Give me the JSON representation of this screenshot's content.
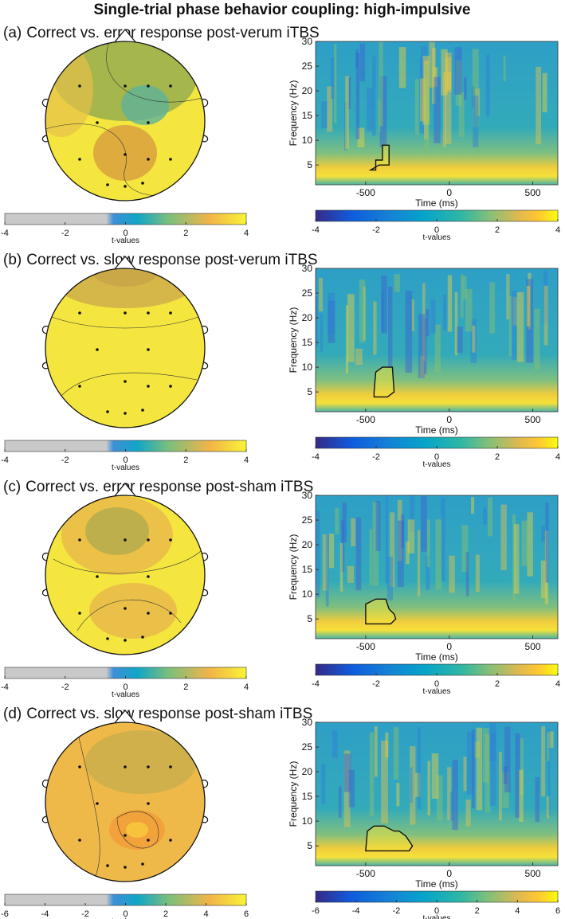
{
  "title": "Single-trial phase behavior coupling: high-impulsive",
  "chart_data": [
    {
      "type": "topoplot",
      "panel": "(a)",
      "title": "Correct vs. error response post-verum iTBS",
      "clim": [
        -4,
        4
      ],
      "cticks": [
        -4,
        -2,
        0,
        2,
        4
      ],
      "clabel": "t-values"
    },
    {
      "type": "heatmap",
      "xlabel": "Time (ms)",
      "ylabel": "Frequency (Hz)",
      "xlim": [
        -800,
        650
      ],
      "xticks": [
        -500,
        0,
        500
      ],
      "ylim": [
        1,
        30
      ],
      "yticks": [
        5,
        10,
        15,
        20,
        25,
        30
      ],
      "clim": [
        -4,
        4
      ],
      "cticks": [
        -4,
        -2,
        0,
        2,
        4
      ],
      "clabel": "t-values"
    },
    {
      "type": "topoplot",
      "panel": "(b)",
      "title": "Correct vs. slow response post-verum iTBS",
      "clim": [
        -4,
        4
      ],
      "cticks": [
        -4,
        -2,
        0,
        2,
        4
      ],
      "clabel": "t-values"
    },
    {
      "type": "heatmap",
      "xlabel": "Time (ms)",
      "ylabel": "Frequency (Hz)",
      "xlim": [
        -800,
        650
      ],
      "xticks": [
        -500,
        0,
        500
      ],
      "ylim": [
        1,
        30
      ],
      "yticks": [
        5,
        10,
        15,
        20,
        25,
        30
      ],
      "clim": [
        -4,
        4
      ],
      "cticks": [
        -4,
        -2,
        0,
        2,
        4
      ],
      "clabel": "t-values"
    },
    {
      "type": "topoplot",
      "panel": "(c)",
      "title": "Correct vs. error response post-sham iTBS",
      "clim": [
        -4,
        4
      ],
      "cticks": [
        -4,
        -2,
        0,
        2,
        4
      ],
      "clabel": "t-values"
    },
    {
      "type": "heatmap",
      "xlabel": "Time (ms)",
      "ylabel": "Frequency (Hz)",
      "xlim": [
        -800,
        650
      ],
      "xticks": [
        -500,
        0,
        500
      ],
      "ylim": [
        1,
        30
      ],
      "yticks": [
        5,
        10,
        15,
        20,
        25,
        30
      ],
      "clim": [
        -4,
        4
      ],
      "cticks": [
        -4,
        -2,
        0,
        2,
        4
      ],
      "clabel": "t-values"
    },
    {
      "type": "topoplot",
      "panel": "(d)",
      "title": "Correct vs. slow response post-sham iTBS",
      "clim": [
        -6,
        6
      ],
      "cticks": [
        -6,
        -4,
        -2,
        0,
        2,
        4,
        6
      ],
      "clabel": "t-values"
    },
    {
      "type": "heatmap",
      "xlabel": "Time (ms)",
      "ylabel": "Frequency (Hz)",
      "xlim": [
        -800,
        650
      ],
      "xticks": [
        -500,
        0,
        500
      ],
      "ylim": [
        1,
        30
      ],
      "yticks": [
        5,
        10,
        15,
        20,
        25,
        30
      ],
      "clim": [
        -6,
        6
      ],
      "cticks": [
        -6,
        -4,
        -2,
        0,
        2,
        4,
        6
      ],
      "clabel": "t-values"
    }
  ]
}
